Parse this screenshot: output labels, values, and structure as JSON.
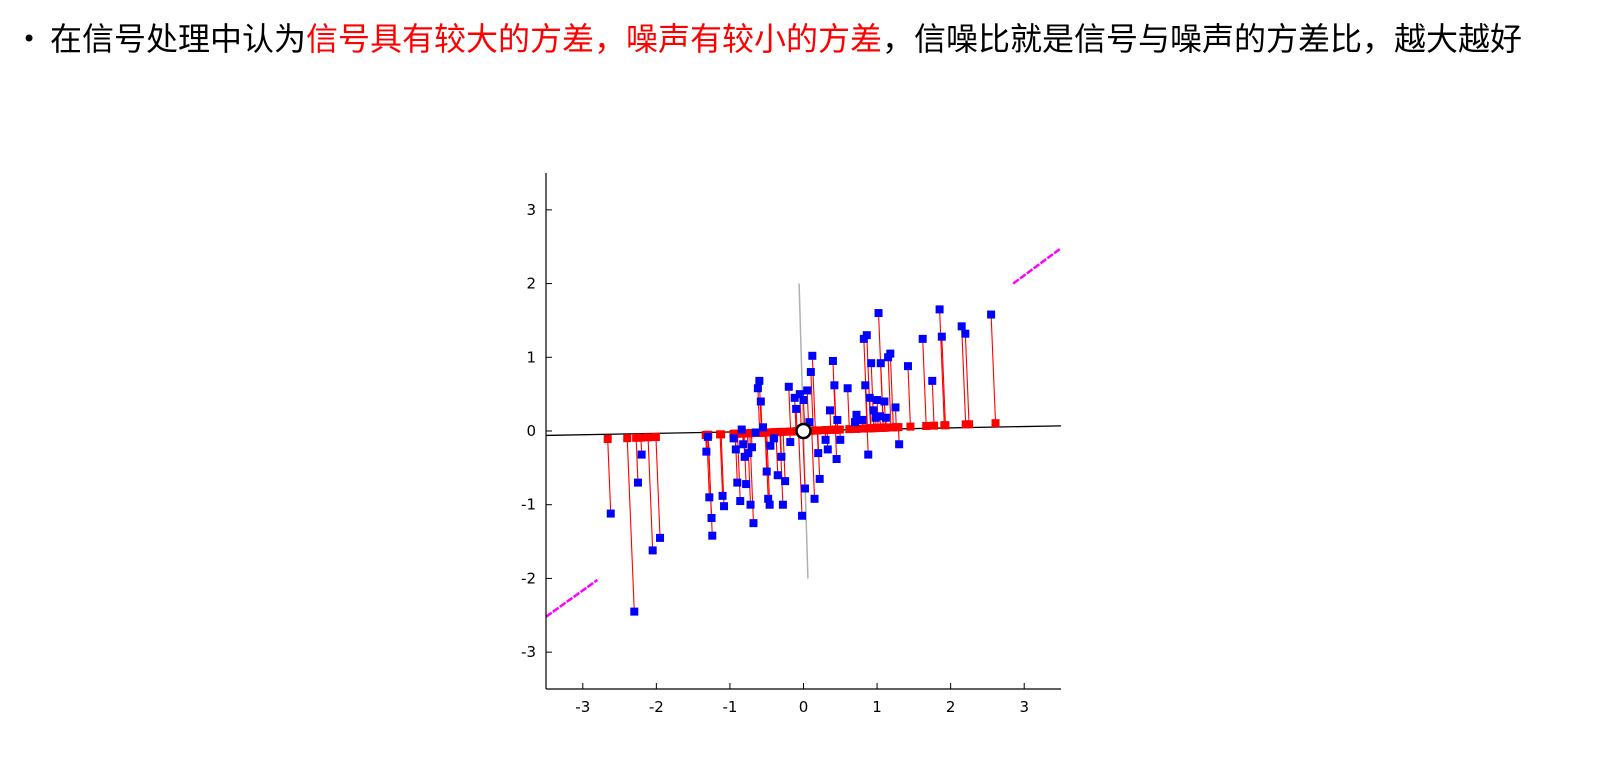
{
  "bullet": {
    "symbol": "•",
    "text_before": "在信号处理中认为",
    "highlight": "信号具有较大的方差，噪声有较小的方差",
    "text_after": "，信噪比就是信号与噪声的方差比，越大越好"
  },
  "colors": {
    "highlight": "#ff0000",
    "points": "#0000ff",
    "projections": "#ff0000",
    "principal_line": "#000000",
    "secondary_line": "#b0b0b0",
    "dashed_segments": "#ff00ff"
  },
  "chart_data": {
    "type": "scatter",
    "xlim": [
      -3.5,
      3.5
    ],
    "ylim": [
      -3.5,
      3.5
    ],
    "xticks": [
      -3,
      -2,
      -1,
      0,
      1,
      2,
      3
    ],
    "yticks": [
      -3,
      -2,
      -1,
      0,
      1,
      2,
      3
    ],
    "grid": false,
    "center": [
      0,
      0
    ],
    "principal_direction": [
      0.9992,
      0.0407
    ],
    "principal_line": [
      [
        -3.5,
        -0.06
      ],
      [
        3.5,
        0.07
      ]
    ],
    "secondary_line": [
      [
        -0.06,
        2.0
      ],
      [
        0.06,
        -2.0
      ]
    ],
    "dashed_segments": [
      [
        [
          -3.5,
          -2.52
        ],
        [
          -2.8,
          -2.02
        ]
      ],
      [
        [
          2.85,
          2.0
        ],
        [
          3.5,
          2.48
        ]
      ]
    ],
    "points": [
      [
        -2.62,
        -1.12
      ],
      [
        -2.3,
        -2.45
      ],
      [
        -2.25,
        -0.7
      ],
      [
        -2.2,
        -0.32
      ],
      [
        -2.05,
        -1.62
      ],
      [
        -1.95,
        -1.45
      ],
      [
        -1.32,
        -0.28
      ],
      [
        -1.3,
        -0.08
      ],
      [
        -1.28,
        -0.9
      ],
      [
        -1.25,
        -1.18
      ],
      [
        -1.24,
        -1.42
      ],
      [
        -1.1,
        -0.88
      ],
      [
        -1.08,
        -1.02
      ],
      [
        -0.95,
        -0.1
      ],
      [
        -0.92,
        -0.25
      ],
      [
        -0.9,
        -0.7
      ],
      [
        -0.86,
        -0.95
      ],
      [
        -0.84,
        0.02
      ],
      [
        -0.82,
        -0.18
      ],
      [
        -0.8,
        -0.35
      ],
      [
        -0.78,
        -0.72
      ],
      [
        -0.75,
        -0.3
      ],
      [
        -0.72,
        -1.0
      ],
      [
        -0.7,
        -0.22
      ],
      [
        -0.68,
        -1.25
      ],
      [
        -0.65,
        -0.02
      ],
      [
        -0.62,
        0.58
      ],
      [
        -0.6,
        0.68
      ],
      [
        -0.58,
        0.4
      ],
      [
        -0.55,
        0.05
      ],
      [
        -0.5,
        -0.55
      ],
      [
        -0.48,
        -0.92
      ],
      [
        -0.46,
        -1.0
      ],
      [
        -0.45,
        -0.2
      ],
      [
        -0.4,
        -0.1
      ],
      [
        -0.35,
        -0.6
      ],
      [
        -0.3,
        -0.35
      ],
      [
        -0.28,
        -1.0
      ],
      [
        -0.25,
        -0.68
      ],
      [
        -0.2,
        0.6
      ],
      [
        -0.18,
        -0.15
      ],
      [
        -0.12,
        0.45
      ],
      [
        -0.1,
        0.3
      ],
      [
        -0.05,
        0.5
      ],
      [
        -0.02,
        -1.15
      ],
      [
        0.0,
        0.42
      ],
      [
        0.02,
        -0.78
      ],
      [
        0.05,
        0.55
      ],
      [
        0.08,
        0.12
      ],
      [
        0.1,
        0.8
      ],
      [
        0.12,
        1.02
      ],
      [
        0.15,
        -0.92
      ],
      [
        0.2,
        -0.3
      ],
      [
        0.22,
        -0.65
      ],
      [
        0.3,
        -0.12
      ],
      [
        0.33,
        -0.25
      ],
      [
        0.36,
        0.28
      ],
      [
        0.4,
        0.95
      ],
      [
        0.42,
        0.62
      ],
      [
        0.45,
        -0.38
      ],
      [
        0.46,
        0.15
      ],
      [
        0.5,
        -0.12
      ],
      [
        0.6,
        0.58
      ],
      [
        0.7,
        0.12
      ],
      [
        0.72,
        0.22
      ],
      [
        0.8,
        0.15
      ],
      [
        0.82,
        1.25
      ],
      [
        0.84,
        0.62
      ],
      [
        0.86,
        1.3
      ],
      [
        0.88,
        -0.32
      ],
      [
        0.9,
        0.45
      ],
      [
        0.92,
        0.92
      ],
      [
        0.95,
        0.28
      ],
      [
        0.98,
        0.18
      ],
      [
        1.0,
        0.42
      ],
      [
        1.02,
        1.6
      ],
      [
        1.04,
        0.2
      ],
      [
        1.05,
        0.92
      ],
      [
        1.1,
        0.4
      ],
      [
        1.12,
        0.18
      ],
      [
        1.15,
        1.0
      ],
      [
        1.18,
        1.05
      ],
      [
        1.25,
        0.32
      ],
      [
        1.3,
        -0.18
      ],
      [
        1.42,
        0.88
      ],
      [
        1.62,
        1.25
      ],
      [
        1.75,
        0.68
      ],
      [
        1.85,
        1.65
      ],
      [
        1.88,
        1.28
      ],
      [
        2.15,
        1.42
      ],
      [
        2.2,
        1.32
      ],
      [
        2.55,
        1.58
      ]
    ]
  }
}
